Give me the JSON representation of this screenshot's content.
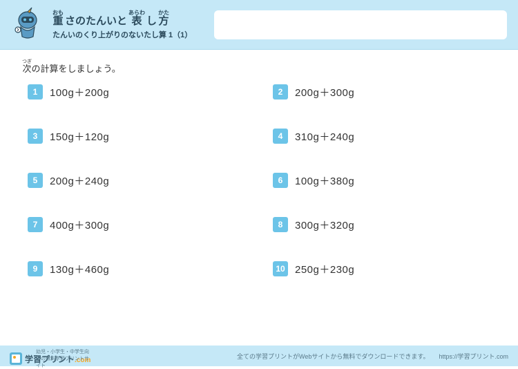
{
  "header": {
    "title_parts": [
      {
        "base": "重",
        "ruby": "おも"
      },
      {
        "base": "さのたんいと",
        "ruby": ""
      },
      {
        "base": "表",
        "ruby": "あらわ"
      },
      {
        "base": "し",
        "ruby": ""
      },
      {
        "base": "方",
        "ruby": "かた"
      }
    ],
    "subtitle": "たんいのくり上がりのないたし算 1（1）"
  },
  "instruction_parts": [
    {
      "base": "次",
      "ruby": "つぎ"
    },
    {
      "base": "の計算をしましょう。",
      "ruby": ""
    }
  ],
  "problems": [
    {
      "n": "1",
      "expr": "100g＋200g"
    },
    {
      "n": "2",
      "expr": "200g＋300g"
    },
    {
      "n": "3",
      "expr": "150g＋120g"
    },
    {
      "n": "4",
      "expr": "310g＋240g"
    },
    {
      "n": "5",
      "expr": "200g＋240g"
    },
    {
      "n": "6",
      "expr": "100g＋380g"
    },
    {
      "n": "7",
      "expr": "400g＋300g"
    },
    {
      "n": "8",
      "expr": "300g＋320g"
    },
    {
      "n": "9",
      "expr": "130g＋460g"
    },
    {
      "n": "10",
      "expr": "250g＋230g"
    }
  ],
  "footer": {
    "tag": "幼児・小学生・中学生向けの無料学習プリントサイト",
    "brand": "学習プリント",
    "brand_suffix": ".com",
    "note": "全ての学習プリントがWebサイトから無料でダウンロードできます。",
    "url": "https://学習プリント.com"
  },
  "colors": {
    "header_bg": "#c5e8f7",
    "badge_bg": "#6cc4e8",
    "text": "#333333",
    "title_text": "#2b4a5c"
  }
}
